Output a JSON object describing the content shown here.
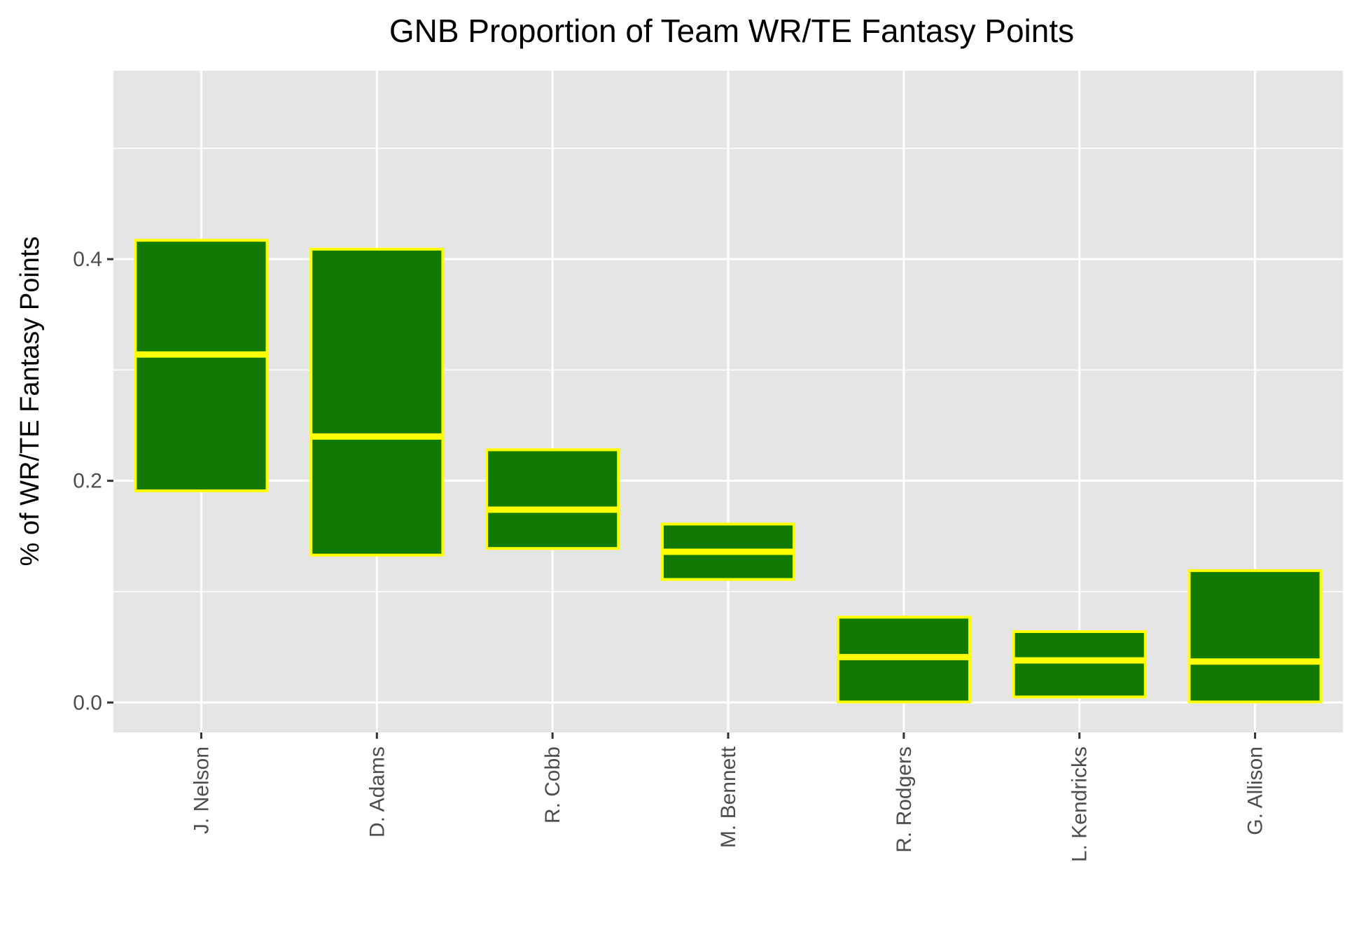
{
  "chart_data": {
    "type": "box",
    "title": "GNB Proportion of Team WR/TE Fantasy Points",
    "xlabel": "",
    "ylabel": "% of WR/TE Fantasy Points",
    "ylim": [
      -0.027,
      0.57
    ],
    "y_ticks": [
      "0.0",
      "0.2",
      "0.4"
    ],
    "y_tick_values": [
      0.0,
      0.2,
      0.4
    ],
    "y_minor_tick_values": [
      0.1,
      0.3,
      0.5
    ],
    "grid": true,
    "categories": [
      "J. Nelson",
      "D. Adams",
      "R. Cobb",
      "M. Bennett",
      "R. Rodgers",
      "L. Kendricks",
      "G. Allison"
    ],
    "series": [
      {
        "boxes": [
          {
            "lower": 0.191,
            "median": 0.314,
            "upper": 0.417
          },
          {
            "lower": 0.133,
            "median": 0.24,
            "upper": 0.409
          },
          {
            "lower": 0.139,
            "median": 0.174,
            "upper": 0.228
          },
          {
            "lower": 0.111,
            "median": 0.136,
            "upper": 0.161
          },
          {
            "lower": 0.0005,
            "median": 0.041,
            "upper": 0.077
          },
          {
            "lower": 0.005,
            "median": 0.038,
            "upper": 0.064
          },
          {
            "lower": 0.0005,
            "median": 0.037,
            "upper": 0.119
          }
        ]
      }
    ],
    "colors": {
      "fill": "#117a00",
      "outline": "#ffff00",
      "panel": "#e5e5e5",
      "grid": "#ffffff",
      "tick": "#333333"
    }
  }
}
